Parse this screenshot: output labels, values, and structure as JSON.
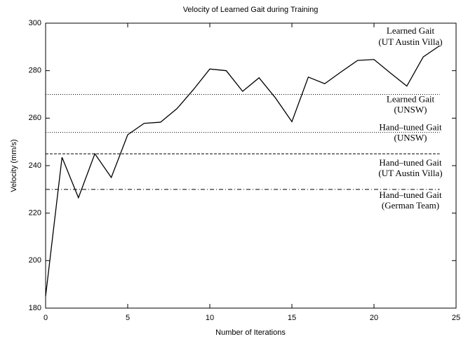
{
  "chart_data": {
    "type": "line",
    "title": "Velocity of Learned Gait during Training",
    "xlabel": "Number of Iterations",
    "ylabel": "Velocity (mm/s)",
    "x": [
      0,
      1,
      2,
      3,
      4,
      5,
      6,
      7,
      8,
      9,
      10,
      11,
      12,
      13,
      14,
      15,
      16,
      17,
      18,
      19,
      20,
      21,
      22,
      23,
      24
    ],
    "series": [
      {
        "label": [
          "Learned Gait",
          "(UT Austin Villa)"
        ],
        "color": "#000000",
        "values": [
          185,
          243.5,
          226.5,
          245,
          235,
          253,
          257.8,
          258.3,
          264,
          272,
          280.7,
          280,
          271.3,
          277,
          268.5,
          258.5,
          277.3,
          274.5,
          279.5,
          284.3,
          284.7,
          279,
          273.5,
          285.8,
          290.5
        ]
      }
    ],
    "reference_lines": [
      {
        "value": 270,
        "label": [
          "Learned Gait",
          "(UNSW)"
        ],
        "style": "dotted"
      },
      {
        "value": 254,
        "label": [
          "Hand–tuned Gait",
          "(UNSW)"
        ],
        "style": "dotted"
      },
      {
        "value": 245,
        "label": [
          "Hand–tuned Gait",
          "(UT Austin Villa)"
        ],
        "style": "dashed"
      },
      {
        "value": 230,
        "label": [
          "Hand–tuned Gait",
          "(German Team)"
        ],
        "style": "dashdot"
      }
    ],
    "xlim": [
      0,
      25
    ],
    "xticks": [
      0,
      5,
      10,
      15,
      20,
      25
    ],
    "ylim": [
      180,
      300
    ],
    "yticks": [
      180,
      200,
      220,
      240,
      260,
      280,
      300
    ]
  }
}
